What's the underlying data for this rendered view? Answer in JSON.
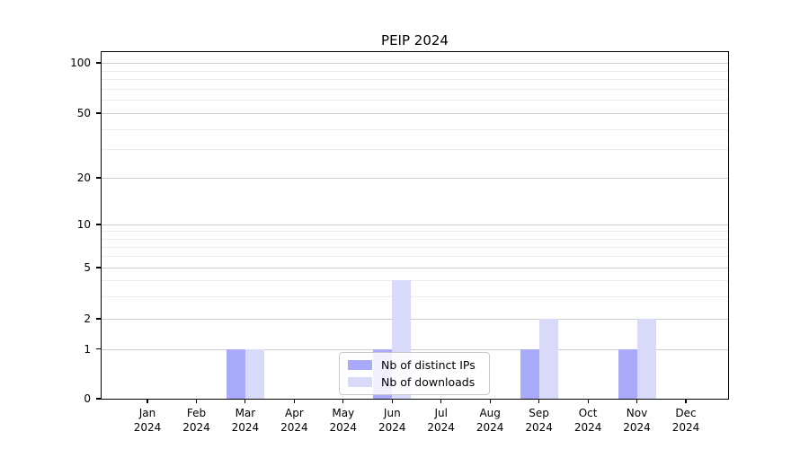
{
  "title": "PEIP 2024",
  "colors": {
    "distinct_ips": "#aaaafa",
    "downloads": "#d9d9fa",
    "grid_major": "#cccccc",
    "grid_minor": "#ececec",
    "axis": "#000000",
    "legend_border": "#c8c8c8",
    "text": "#000000"
  },
  "legend": {
    "items": [
      {
        "label": "Nb of distinct IPs",
        "color_key": "distinct_ips"
      },
      {
        "label": "Nb of downloads",
        "color_key": "downloads"
      }
    ]
  },
  "chart_data": {
    "type": "bar",
    "title": "PEIP 2024",
    "categories": [
      "Jan 2024",
      "Feb 2024",
      "Mar 2024",
      "Apr 2024",
      "May 2024",
      "Jun 2024",
      "Jul 2024",
      "Aug 2024",
      "Sep 2024",
      "Oct 2024",
      "Nov 2024",
      "Dec 2024"
    ],
    "series": [
      {
        "name": "Nb of distinct IPs",
        "color_key": "distinct_ips",
        "values": [
          0,
          0,
          1,
          0,
          0,
          1,
          0,
          0,
          1,
          0,
          1,
          0
        ]
      },
      {
        "name": "Nb of downloads",
        "color_key": "downloads",
        "values": [
          0,
          0,
          1,
          0,
          0,
          4,
          0,
          0,
          2,
          0,
          2,
          0
        ]
      }
    ],
    "xlabel": "",
    "ylabel": "",
    "yticks": [
      0,
      1,
      2,
      5,
      10,
      20,
      50,
      100
    ],
    "minor_gridlines": [
      3,
      4,
      6,
      7,
      8,
      9,
      30,
      40,
      60,
      70,
      80,
      90
    ],
    "scale": "log-like above 1, linear 0-1",
    "ylim": [
      0,
      110
    ],
    "grid": "horizontal",
    "legend_position": "lower center"
  }
}
